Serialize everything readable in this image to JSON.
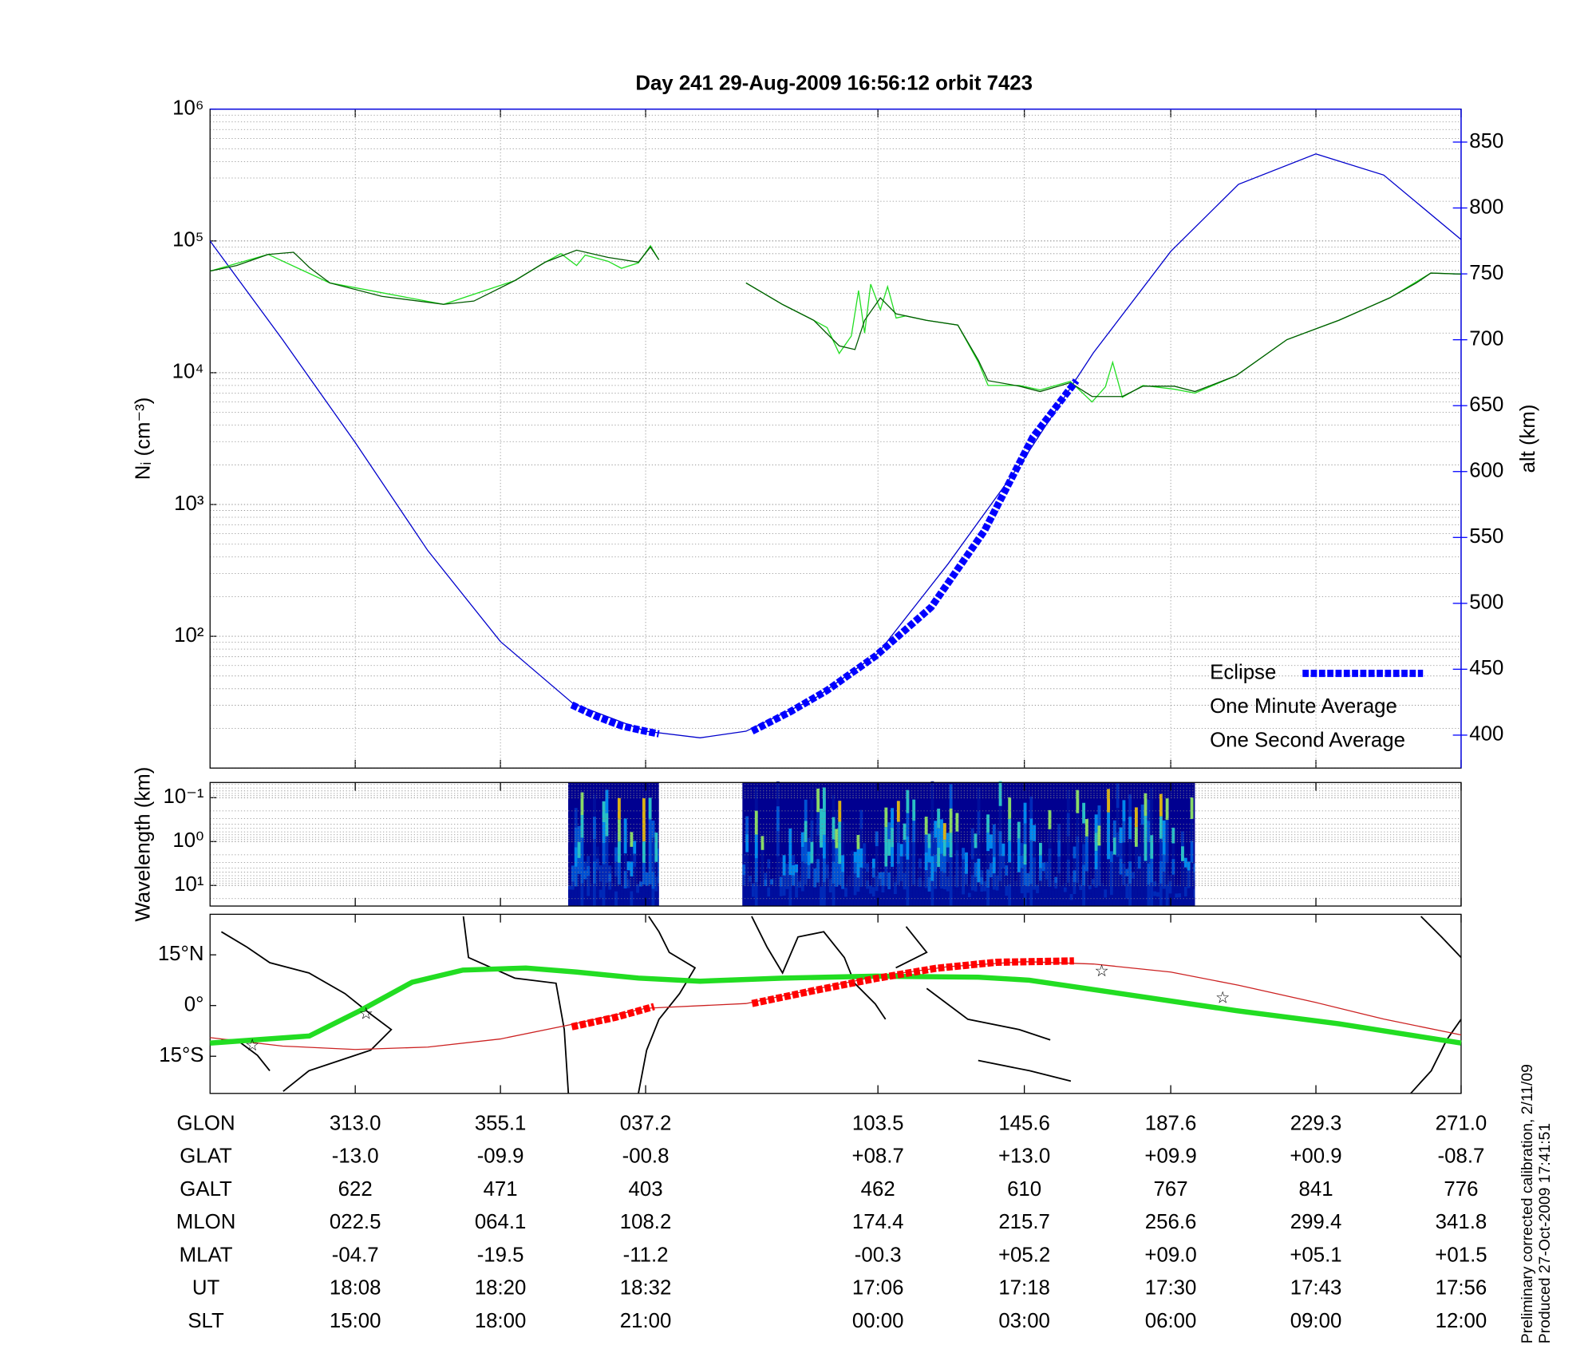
{
  "chart_data": [
    {
      "type": "line",
      "title": "Day 241   29-Aug-2009 16:56:12   orbit 7423",
      "ylabel": "Nᵢ (cm⁻³)",
      "y2label": "alt (km)",
      "log_y": true,
      "grid": true,
      "legend": "lower right",
      "xlim": [
        0,
        103.4
      ],
      "xticks": [
        12,
        24,
        36,
        55.2,
        67.3,
        79.4,
        91.4,
        103.4
      ],
      "ylim": [
        10,
        1000000
      ],
      "yticks": [
        {
          "value": 100,
          "label": "10²"
        },
        {
          "value": 1000,
          "label": "10³"
        },
        {
          "value": 10000,
          "label": "10⁴"
        },
        {
          "value": 100000,
          "label": "10⁵"
        },
        {
          "value": 1000000,
          "label": "10⁶"
        }
      ],
      "y2lim": [
        375,
        875
      ],
      "y2ticks": [
        400,
        450,
        500,
        550,
        600,
        650,
        700,
        750,
        800,
        850
      ],
      "y2color": "#0000ff",
      "series": [
        {
          "color": "#0000cc",
          "axis": "y2",
          "style": "thin",
          "x": [
            0,
            6,
            12,
            18,
            24,
            30,
            36,
            40.5,
            44.3,
            50,
            55.2,
            61,
            67.3,
            73,
            79.4,
            85,
            91.4,
            97,
            103.4
          ],
          "values": [
            775,
            700,
            622,
            540,
            471,
            424,
            403,
            398,
            403,
            428,
            462,
            530,
            610,
            690,
            767,
            818,
            841,
            825,
            776
          ]
        },
        {
          "name": "One Second Average",
          "color": "#22dd22",
          "label_color": "#22dd22",
          "style": "thin",
          "x": [
            0,
            4.8,
            9.9,
            19.3,
            25.2,
            27.7,
            29,
            30.3,
            31,
            32.9,
            34,
            35.4,
            36.4,
            37.1,
            40,
            44.3,
            47.3,
            49.9,
            51,
            52,
            53,
            53.6,
            54.1,
            54.6,
            55.4,
            56,
            56.7,
            57.5,
            59.2,
            61.8,
            63.5,
            64.3,
            66.9,
            68.6,
            71.1,
            72.9,
            74,
            74.6,
            75.4,
            77.1,
            79.7,
            81.4,
            84.8,
            89,
            93.3,
            97.5,
            100.9,
            103.4
          ],
          "values": [
            59000,
            79000,
            48000,
            33000,
            50000,
            69000,
            80000,
            65000,
            78000,
            70000,
            62000,
            68000,
            92000,
            72000,
            null,
            48000,
            33000,
            25000,
            22000,
            14000,
            19000,
            42000,
            20000,
            47000,
            30000,
            45000,
            26000,
            27000,
            25000,
            23000,
            12000,
            8000,
            8000,
            7400,
            8600,
            6000,
            7800,
            12000,
            6500,
            8000,
            7500,
            7000,
            9500,
            17800,
            25000,
            37000,
            57000,
            56000
          ]
        },
        {
          "name": "One Minute Average",
          "color": "#005a00",
          "label_color": "#000000",
          "style": "thin",
          "x": [
            0,
            2.2,
            4.8,
            6.9,
            8.2,
            9.9,
            14.2,
            19.3,
            21.8,
            25.2,
            27.7,
            30.3,
            32.9,
            35.4,
            36.4,
            37.1,
            40,
            44.3,
            47.3,
            49.9,
            52,
            53.3,
            54.1,
            55.4,
            56.7,
            59.2,
            61.8,
            63.5,
            64.3,
            66.9,
            68.6,
            71.1,
            72.9,
            75.4,
            77.1,
            79.7,
            81.4,
            84.8,
            89,
            93.3,
            97.5,
            99.7,
            100.9,
            103.4
          ],
          "values": [
            59000,
            65000,
            79000,
            82000,
            63000,
            48000,
            38000,
            33000,
            35000,
            50000,
            69000,
            85000,
            75000,
            69000,
            90000,
            72000,
            null,
            48000,
            33000,
            25000,
            16000,
            15000,
            25000,
            37000,
            28000,
            25000,
            23000,
            12400,
            8700,
            7900,
            7200,
            8400,
            6600,
            6600,
            7900,
            7900,
            7200,
            9500,
            17800,
            25000,
            37000,
            48000,
            57000,
            56000
          ]
        },
        {
          "name": "Eclipse",
          "color": "#0000ff",
          "label_color": "#0000ff",
          "axis": "y2",
          "style": "dashed",
          "x": [
            29.9,
            32,
            34,
            36,
            37.1,
            40,
            44.8,
            48,
            51,
            55,
            59.6,
            64,
            68,
            71.6
          ],
          "values": [
            423,
            414,
            407,
            403,
            401,
            null,
            403,
            418,
            434,
            460,
            497,
            555,
            626,
            669
          ]
        }
      ]
    },
    {
      "type": "heatmap",
      "ylabel": "Wavelength (km)",
      "log_y": true,
      "grid": true,
      "xlim": [
        0,
        103.4
      ],
      "xticks": [
        12,
        24,
        36,
        55.2,
        67.3,
        79.4,
        91.4,
        103.4
      ],
      "ylim": [
        29.5,
        0.045
      ],
      "yticks": [
        {
          "value": 0.1,
          "label": "10⁻¹"
        },
        {
          "value": 1,
          "label": "10⁰"
        },
        {
          "value": 10,
          "label": "10¹"
        }
      ],
      "segments": [
        [
          29.6,
          37.1
        ],
        [
          44,
          81.4
        ]
      ]
    },
    {
      "type": "map",
      "xlim": [
        0,
        103.4
      ],
      "xticks": [
        12,
        24,
        36,
        55.2,
        67.3,
        79.4,
        91.4,
        103.4
      ],
      "ylim": [
        -26,
        27
      ],
      "yticks": [
        {
          "value": 15,
          "label": "15°N"
        },
        {
          "value": 0,
          "label": "0°"
        },
        {
          "value": -15,
          "label": "15°S"
        }
      ],
      "series": [
        {
          "color": "#cc2222",
          "style": "thin",
          "x": [
            0,
            6,
            12,
            18,
            24,
            30,
            36,
            44.3,
            55.2,
            61,
            67.3,
            73,
            79.4,
            85,
            91.4,
            97,
            103.4
          ],
          "values": [
            -9.5,
            -12,
            -13.0,
            -12.3,
            -9.9,
            -5.5,
            -0.8,
            0.6,
            8.7,
            11.5,
            13.0,
            12.3,
            9.9,
            6,
            0.9,
            -4,
            -8.7
          ]
        },
        {
          "color": "#22dd22",
          "style": "thick",
          "x": [
            0,
            8.2,
            12.4,
            16.7,
            20.9,
            26.1,
            30.3,
            35.4,
            40.5,
            47.3,
            55,
            63.5,
            67.7,
            76.3,
            84.8,
            93.3,
            103.4
          ],
          "values": [
            -11.1,
            -9,
            -1.5,
            6.9,
            10.5,
            11.1,
            9.9,
            8.1,
            7.2,
            8.1,
            8.7,
            8.4,
            7.5,
            3,
            -1.5,
            -5.4,
            -11.1
          ]
        },
        {
          "color": "#ff0000",
          "style": "dashed",
          "x": [
            29.9,
            33.5,
            36.7,
            40,
            44.8,
            50,
            55,
            60,
            65,
            71.4
          ],
          "values": [
            -6.3,
            -3.5,
            -0.3,
            null,
            0.6,
            4.5,
            8,
            11,
            12.8,
            13.2
          ]
        },
        {
          "color": "#cc33cc",
          "style": "star",
          "x": [
            3.5,
            12.9,
            73.7,
            83.7
          ],
          "values": [
            -12,
            -2.7,
            9.9,
            2.1
          ]
        }
      ]
    }
  ],
  "table": {
    "rows": [
      {
        "label": "GLON",
        "values": [
          "313.0",
          "355.1",
          "037.2",
          "103.5",
          "145.6",
          "187.6",
          "229.3",
          "271.0"
        ]
      },
      {
        "label": "GLAT",
        "values": [
          "-13.0",
          "-09.9",
          "-00.8",
          "+08.7",
          "+13.0",
          "+09.9",
          "+00.9",
          "-08.7"
        ]
      },
      {
        "label": "GALT",
        "values": [
          "622",
          "471",
          "403",
          "462",
          "610",
          "767",
          "841",
          "776"
        ]
      },
      {
        "label": "MLON",
        "values": [
          "022.5",
          "064.1",
          "108.2",
          "174.4",
          "215.7",
          "256.6",
          "299.4",
          "341.8"
        ]
      },
      {
        "label": "MLAT",
        "values": [
          "-04.7",
          "-19.5",
          "-11.2",
          "-00.3",
          "+05.2",
          "+09.0",
          "+05.1",
          "+01.5"
        ]
      },
      {
        "label": "UT",
        "values": [
          "18:08",
          "18:20",
          "18:32",
          "17:06",
          "17:18",
          "17:30",
          "17:43",
          "17:56"
        ]
      },
      {
        "label": "SLT",
        "values": [
          "15:00",
          "18:00",
          "21:00",
          "00:00",
          "03:00",
          "06:00",
          "09:00",
          "12:00"
        ]
      }
    ]
  },
  "footer": [
    "Preliminary corrected calibration, 2/11/09",
    "Produced 27-Oct-2009 17:41:51"
  ]
}
